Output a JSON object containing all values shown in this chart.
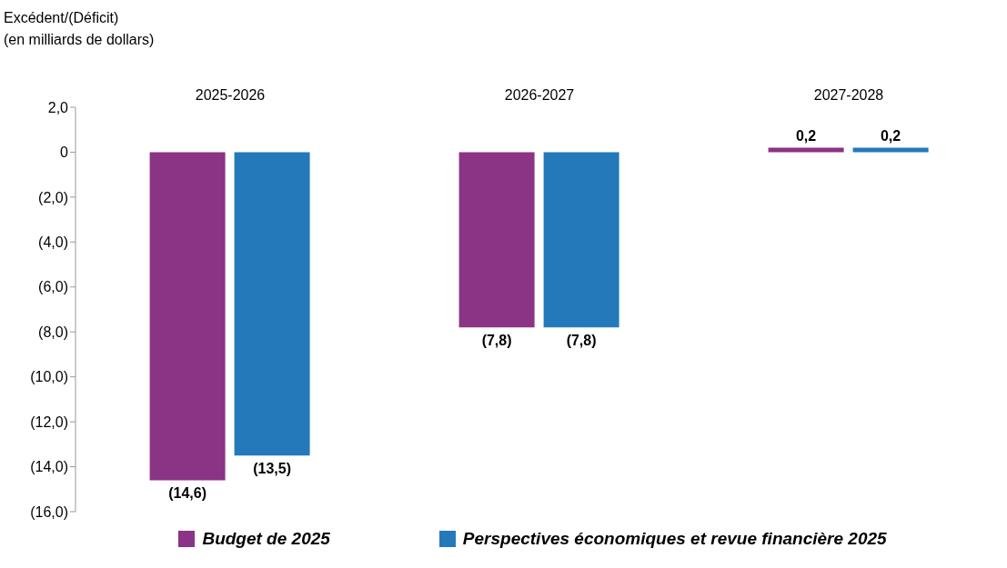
{
  "chart_data": {
    "type": "bar",
    "ylabel": "Excédent/(Déficit)\n(en milliards de dollars)",
    "categories": [
      "2025-2026",
      "2026-2027",
      "2027-2028"
    ],
    "series": [
      {
        "name": "Budget de 2025",
        "color": "#8b3384",
        "values": [
          -14.6,
          -7.8,
          0.2
        ],
        "value_labels": [
          "(14,6)",
          "(7,8)",
          "0,2"
        ]
      },
      {
        "name": "Perspectives économiques et revue financière 2025",
        "color": "#2479bb",
        "values": [
          -13.5,
          -7.8,
          0.2
        ],
        "value_labels": [
          "(13,5)",
          "(7,8)",
          "0,2"
        ]
      }
    ],
    "ylim": [
      -16,
      2
    ],
    "yticks": [
      {
        "value": 2,
        "label": "2,0"
      },
      0,
      {
        "value": -2,
        "label": "(2,0)"
      },
      {
        "value": -4,
        "label": "(4,0)"
      },
      {
        "value": -6,
        "label": "(6,0)"
      },
      {
        "value": -8,
        "label": "(8,0)"
      },
      {
        "value": -10,
        "label": "(10,0)"
      },
      {
        "value": -12,
        "label": "(12,0)"
      },
      {
        "value": -14,
        "label": "(14,0)"
      },
      {
        "value": -16,
        "label": "(16,0)"
      }
    ],
    "legend": "bottom"
  }
}
